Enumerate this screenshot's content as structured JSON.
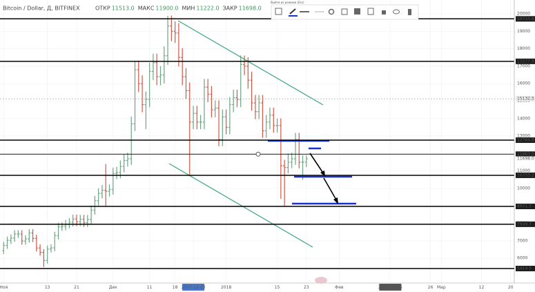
{
  "header": {
    "symbol": "Bitcoin / Dollar, Д, BITFINEX",
    "ohlc": [
      {
        "label": "ОТКР",
        "value": "11513.0"
      },
      {
        "label": "МАКС",
        "value": "11900.0"
      },
      {
        "label": "МИН",
        "value": "11222.0"
      },
      {
        "label": "ЗАКР",
        "value": "11698.0"
      }
    ],
    "tooltip": "Выйти из режима (Esc)"
  },
  "chart_data": {
    "type": "ohlc",
    "up_color": "#6ba583",
    "down_color": "#d75442",
    "grid": true,
    "x": [
      "2017-11-01",
      "2017-11-02",
      "2017-11-03",
      "2017-11-04",
      "2017-11-05",
      "2017-11-06",
      "2017-11-07",
      "2017-11-08",
      "2017-11-09",
      "2017-11-10",
      "2017-11-11",
      "2017-11-12",
      "2017-11-13",
      "2017-11-14",
      "2017-11-15",
      "2017-11-16",
      "2017-11-17",
      "2017-11-18",
      "2017-11-19",
      "2017-11-20",
      "2017-11-21",
      "2017-11-22",
      "2017-11-23",
      "2017-11-24",
      "2017-11-25",
      "2017-11-26",
      "2017-11-27",
      "2017-11-28",
      "2017-11-29",
      "2017-11-30",
      "2017-12-01",
      "2017-12-02",
      "2017-12-03",
      "2017-12-04",
      "2017-12-05",
      "2017-12-06",
      "2017-12-07",
      "2017-12-08",
      "2017-12-09",
      "2017-12-10",
      "2017-12-11",
      "2017-12-12",
      "2017-12-13",
      "2017-12-14",
      "2017-12-15",
      "2017-12-16",
      "2017-12-17",
      "2017-12-18",
      "2017-12-19",
      "2017-12-20",
      "2017-12-21",
      "2017-12-22",
      "2017-12-23",
      "2017-12-24",
      "2017-12-25",
      "2017-12-26",
      "2017-12-27",
      "2017-12-28",
      "2017-12-29",
      "2017-12-30",
      "2017-12-31",
      "2018-01-01",
      "2018-01-02",
      "2018-01-03",
      "2018-01-04",
      "2018-01-05",
      "2018-01-06",
      "2018-01-07",
      "2018-01-08",
      "2018-01-09",
      "2018-01-10",
      "2018-01-11",
      "2018-01-12",
      "2018-01-13",
      "2018-01-14",
      "2018-01-15",
      "2018-01-16",
      "2018-01-17",
      "2018-01-18",
      "2018-01-19",
      "2018-01-20",
      "2018-01-21",
      "2018-01-22",
      "2018-01-23"
    ],
    "open": [
      6440,
      6740,
      7030,
      7160,
      7390,
      7390,
      6990,
      7110,
      7450,
      7140,
      6590,
      6340,
      5880,
      6530,
      6600,
      7300,
      7800,
      7830,
      7960,
      8060,
      8250,
      8090,
      8240,
      8040,
      8230,
      8760,
      9300,
      9720,
      9900,
      9840,
      9940,
      10860,
      10910,
      11260,
      11600,
      11700,
      13700,
      16800,
      16000,
      14800,
      15100,
      16700,
      17200,
      16400,
      16500,
      17600,
      19300,
      19000,
      18900,
      17500,
      16400,
      15600,
      13800,
      14300,
      13800,
      13800,
      15800,
      15400,
      14500,
      14600,
      12800,
      14100,
      13500,
      14800,
      15200,
      15100,
      17100,
      17000,
      16200,
      14900,
      14400,
      14900,
      13300,
      13800,
      14200,
      13600,
      13600,
      11300,
      11200,
      11500,
      11700,
      12800,
      11500,
      11513
    ],
    "high": [
      6940,
      7240,
      7370,
      7610,
      7610,
      7610,
      7320,
      7670,
      7670,
      7350,
      6790,
      6530,
      6730,
      6800,
      7520,
      8030,
      8060,
      8200,
      8300,
      8500,
      8500,
      8490,
      8490,
      8480,
      9020,
      9580,
      10010,
      10200,
      11400,
      10240,
      11190,
      11240,
      11600,
      11950,
      12050,
      14110,
      17300,
      17300,
      16480,
      15550,
      17200,
      17720,
      17720,
      17000,
      18130,
      19880,
      19900,
      19570,
      19470,
      18030,
      16890,
      16070,
      14730,
      14730,
      14210,
      16270,
      16270,
      15860,
      15040,
      15040,
      14520,
      14520,
      15240,
      15660,
      15660,
      17610,
      17610,
      17510,
      16690,
      15350,
      15350,
      15350,
      14210,
      14630,
      14630,
      14010,
      14010,
      11640,
      12000,
      12050,
      13180,
      13180,
      11900,
      11900
    ],
    "low": [
      6250,
      6540,
      6820,
      6950,
      7170,
      6780,
      6780,
      6900,
      6930,
      6390,
      6150,
      5500,
      5700,
      6330,
      6400,
      7080,
      7570,
      7600,
      7720,
      7820,
      7850,
      7850,
      7800,
      7800,
      7980,
      8500,
      9020,
      9430,
      9000,
      9540,
      9640,
      10530,
      10580,
      10920,
      11250,
      11350,
      13290,
      15520,
      14360,
      13400,
      14650,
      16200,
      15910,
      15910,
      16010,
      17070,
      18430,
      18330,
      16980,
      15910,
      15130,
      10700,
      13390,
      13390,
      13390,
      13390,
      14940,
      14070,
      14070,
      12420,
      12420,
      13100,
      13100,
      14360,
      14650,
      14650,
      16490,
      15710,
      14450,
      13970,
      13970,
      12900,
      12900,
      13390,
      13190,
      13190,
      9400,
      9000,
      10860,
      11160,
      11350,
      11150,
      10500,
      11222
    ],
    "close": [
      6740,
      7030,
      7160,
      7390,
      7390,
      6990,
      7110,
      7450,
      7140,
      6590,
      6340,
      5880,
      6530,
      6600,
      7300,
      7800,
      7830,
      7960,
      8060,
      8250,
      8090,
      8240,
      8040,
      8230,
      8760,
      9300,
      9720,
      9900,
      9840,
      9940,
      10860,
      10910,
      11260,
      11600,
      11700,
      13700,
      16800,
      16000,
      14800,
      15100,
      16700,
      17200,
      16400,
      16500,
      17600,
      19300,
      19000,
      18900,
      17500,
      16400,
      15600,
      13800,
      14300,
      13800,
      13800,
      15800,
      15400,
      14500,
      14600,
      12800,
      14100,
      13500,
      14800,
      15200,
      15100,
      17100,
      17000,
      16200,
      14900,
      14400,
      14900,
      13300,
      13800,
      14200,
      13600,
      13600,
      11300,
      11200,
      11500,
      11700,
      12800,
      11500,
      11513,
      11698
    ],
    "xlim": [
      "2017-10-31",
      "2018-03-21"
    ],
    "xticks": [
      {
        "value": "2017-11-01",
        "label": "Ноя"
      },
      {
        "value": "2017-11-13",
        "label": "13"
      },
      {
        "value": "2017-11-21",
        "label": "21"
      },
      {
        "value": "2017-12-01",
        "label": "Дек"
      },
      {
        "value": "2017-12-11",
        "label": "11"
      },
      {
        "value": "2017-12-18",
        "label": "18"
      },
      "2017-12-23",
      {
        "value": "2018-01-01",
        "label": "2018"
      },
      {
        "value": "2018-01-15",
        "label": "15"
      },
      {
        "value": "2018-01-23",
        "label": "23"
      },
      {
        "value": "2018-02-01",
        "label": "Фев"
      },
      "2018-02-15",
      {
        "value": "2018-02-26",
        "label": "26"
      },
      {
        "value": "2018-03-01",
        "label": "Мар"
      },
      {
        "value": "2018-03-12",
        "label": "12"
      },
      {
        "value": "2018-03-20",
        "label": "20"
      }
    ],
    "ylim": [
      4585,
      20790
    ],
    "yticks": [
      6000,
      7000,
      8000,
      9000,
      10000,
      11000,
      12000,
      13000,
      14000,
      15000,
      16000,
      17000,
      18000,
      19000,
      20000
    ],
    "levels": [
      19710.8,
      17277.8,
      12764.8,
      {
        "value": 11963,
        "label": "11963.0"
      },
      10753.2,
      8971.3,
      7949.7,
      5414.5
    ],
    "crosshair": 15132.5,
    "last_price": {
      "value": 11698,
      "label": "11698.0"
    }
  }
}
